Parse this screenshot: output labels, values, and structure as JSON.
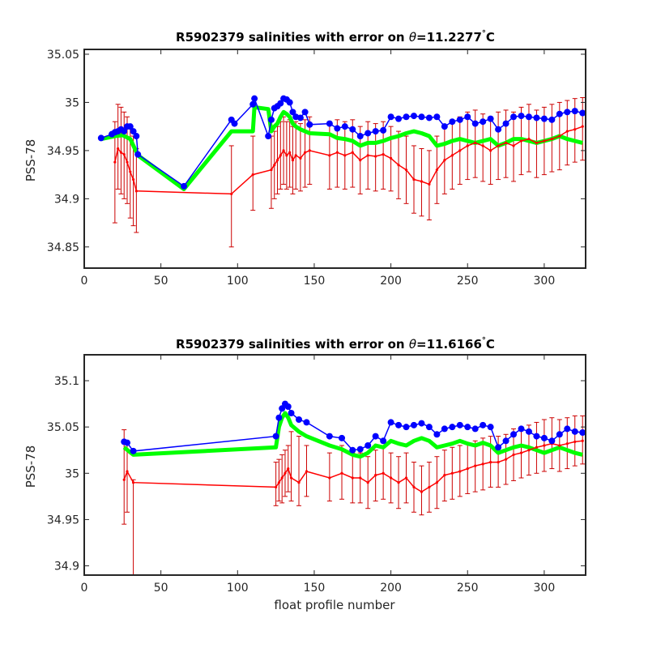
{
  "chart_data": [
    {
      "type": "line",
      "title": "R5902379 salinities with error on θ=11.2277°C",
      "title_parts": {
        "prefix": "R5902379 salinities with error on ",
        "symbol": "θ",
        "value": "=11.2277",
        "degree": "°",
        "unit": "C"
      },
      "xlabel": "",
      "ylabel": "PSS-78",
      "xlim": [
        0,
        327
      ],
      "ylim": [
        34.828,
        35.055
      ],
      "xticks": [
        0,
        50,
        100,
        150,
        200,
        250,
        300
      ],
      "xtick_labels": [
        "0",
        "50",
        "100",
        "150",
        "200",
        "250",
        "300"
      ],
      "yticks": [
        34.85,
        34.9,
        34.95,
        35,
        35.05
      ],
      "ytick_labels": [
        "34.85",
        "34.9",
        "34.95",
        "35",
        "35.05"
      ],
      "colors": {
        "float": "#0000ff",
        "mapped": "#00ff00",
        "calibrated": "#ff0000",
        "errorbar": "#cc0000"
      },
      "series": [
        {
          "x": [
            11,
            18,
            20,
            22,
            24,
            26,
            28,
            30,
            32,
            34,
            35,
            65,
            96,
            98,
            110,
            111,
            120,
            122,
            124,
            126,
            128,
            130,
            132,
            134,
            136,
            138,
            141,
            144,
            147,
            160,
            165,
            170,
            175,
            180,
            185,
            190,
            195,
            200,
            205,
            210,
            215,
            220,
            225,
            230,
            235,
            240,
            245,
            250,
            255,
            260,
            265,
            270,
            275,
            280,
            285,
            290,
            295,
            300,
            305,
            310,
            315,
            320,
            325
          ],
          "values": [
            34.963,
            34.967,
            34.969,
            34.97,
            34.972,
            34.97,
            34.975,
            34.975,
            34.97,
            34.965,
            34.946,
            34.913,
            34.982,
            34.978,
            34.998,
            35.004,
            34.965,
            34.982,
            34.994,
            34.996,
            34.999,
            35.004,
            35.003,
            35.0,
            34.99,
            34.985,
            34.984,
            34.99,
            34.977,
            34.978,
            34.973,
            34.975,
            34.972,
            34.965,
            34.968,
            34.97,
            34.971,
            34.985,
            34.983,
            34.985,
            34.986,
            34.985,
            34.984,
            34.985,
            34.975,
            34.98,
            34.982,
            34.985,
            34.978,
            34.98,
            34.983,
            34.972,
            34.978,
            34.985,
            34.986,
            34.985,
            34.984,
            34.983,
            34.982,
            34.988,
            34.99,
            34.991,
            34.989
          ]
        },
        {
          "x": [
            11,
            20,
            25,
            30,
            35,
            65,
            96,
            98,
            110,
            111,
            120,
            122,
            124,
            126,
            128,
            130,
            132,
            134,
            136,
            138,
            141,
            144,
            147,
            160,
            165,
            170,
            175,
            180,
            185,
            190,
            195,
            200,
            205,
            210,
            215,
            220,
            225,
            230,
            235,
            240,
            245,
            250,
            255,
            260,
            265,
            270,
            275,
            280,
            285,
            290,
            295,
            300,
            305,
            310,
            315,
            320,
            325
          ],
          "values": [
            34.962,
            34.965,
            34.966,
            34.962,
            34.945,
            34.91,
            34.97,
            34.97,
            34.97,
            34.995,
            34.993,
            34.97,
            34.975,
            34.978,
            34.985,
            34.99,
            34.988,
            34.985,
            34.978,
            34.975,
            34.972,
            34.97,
            34.968,
            34.967,
            34.963,
            34.962,
            34.96,
            34.955,
            34.958,
            34.958,
            34.96,
            34.963,
            34.965,
            34.968,
            34.97,
            34.968,
            34.965,
            34.955,
            34.957,
            34.96,
            34.962,
            34.96,
            34.958,
            34.96,
            34.962,
            34.955,
            34.958,
            34.962,
            34.962,
            34.96,
            34.958,
            34.96,
            34.962,
            34.965,
            34.962,
            34.96,
            34.958
          ]
        },
        {
          "x": [
            20,
            22,
            24,
            26,
            28,
            30,
            32,
            34,
            96,
            110,
            122,
            124,
            126,
            128,
            130,
            132,
            134,
            136,
            138,
            141,
            144,
            147,
            160,
            165,
            170,
            175,
            180,
            185,
            190,
            195,
            200,
            205,
            210,
            215,
            220,
            225,
            230,
            235,
            240,
            245,
            250,
            255,
            260,
            265,
            270,
            275,
            280,
            285,
            290,
            295,
            300,
            305,
            310,
            315,
            320,
            325
          ],
          "values": [
            34.938,
            34.952,
            34.948,
            34.946,
            34.938,
            34.928,
            34.92,
            34.908,
            34.905,
            34.925,
            34.93,
            34.935,
            34.94,
            34.945,
            34.95,
            34.945,
            34.948,
            34.94,
            34.945,
            34.942,
            34.948,
            34.95,
            34.945,
            34.948,
            34.945,
            34.948,
            34.94,
            34.945,
            34.944,
            34.946,
            34.942,
            34.935,
            34.93,
            34.92,
            34.918,
            34.915,
            34.93,
            34.94,
            34.945,
            34.95,
            34.955,
            34.958,
            34.955,
            34.95,
            34.955,
            34.958,
            34.955,
            34.96,
            34.962,
            34.958,
            34.96,
            34.962,
            34.965,
            34.97,
            34.972,
            34.975
          ],
          "error_low": [
            34.875,
            34.91,
            34.905,
            34.9,
            34.895,
            34.88,
            34.872,
            34.865,
            34.85,
            34.888,
            34.89,
            34.9,
            34.905,
            34.91,
            34.915,
            34.91,
            34.912,
            34.905,
            34.91,
            34.908,
            34.912,
            34.915,
            34.91,
            34.912,
            34.91,
            34.912,
            34.905,
            34.91,
            34.908,
            34.91,
            34.908,
            34.9,
            34.895,
            34.885,
            34.882,
            34.878,
            34.895,
            34.905,
            34.91,
            34.915,
            34.92,
            34.922,
            34.918,
            34.915,
            34.92,
            34.922,
            34.918,
            34.925,
            34.928,
            34.922,
            34.925,
            34.928,
            34.93,
            34.935,
            34.938,
            34.94
          ],
          "error_high": [
            34.98,
            34.998,
            34.995,
            34.99,
            34.985,
            34.975,
            34.965,
            34.952,
            34.955,
            34.965,
            34.965,
            34.97,
            34.975,
            34.98,
            34.985,
            34.98,
            34.982,
            34.975,
            34.98,
            34.978,
            34.982,
            34.985,
            34.98,
            34.982,
            34.98,
            34.982,
            34.975,
            34.98,
            34.978,
            34.98,
            34.975,
            34.97,
            34.965,
            34.955,
            34.952,
            34.95,
            34.965,
            34.975,
            34.98,
            34.985,
            34.99,
            34.992,
            34.988,
            34.985,
            34.99,
            34.992,
            34.99,
            34.995,
            34.998,
            34.992,
            34.995,
            34.998,
            35.0,
            35.002,
            35.004,
            35.005
          ]
        }
      ]
    },
    {
      "type": "line",
      "title": "R5902379 salinities with error on θ=11.6166°C",
      "title_parts": {
        "prefix": "R5902379 salinities with error on ",
        "symbol": "θ",
        "value": "=11.6166",
        "degree": "°",
        "unit": "C"
      },
      "xlabel": "float profile number",
      "ylabel": "PSS-78",
      "xlim": [
        0,
        327
      ],
      "ylim": [
        34.89,
        35.128
      ],
      "xticks": [
        0,
        50,
        100,
        150,
        200,
        250,
        300
      ],
      "xtick_labels": [
        "0",
        "50",
        "100",
        "150",
        "200",
        "250",
        "300"
      ],
      "yticks": [
        34.9,
        34.95,
        35,
        35.05,
        35.1
      ],
      "ytick_labels": [
        "34.9",
        "34.95",
        "35",
        "35.05",
        "35.1"
      ],
      "colors": {
        "float": "#0000ff",
        "mapped": "#00ff00",
        "calibrated": "#ff0000",
        "errorbar": "#cc0000"
      },
      "series": [
        {
          "x": [
            26,
            28,
            32,
            125,
            127,
            129,
            131,
            133,
            135,
            140,
            145,
            160,
            168,
            175,
            180,
            185,
            190,
            195,
            200,
            205,
            210,
            215,
            220,
            225,
            230,
            235,
            240,
            245,
            250,
            255,
            260,
            265,
            270,
            275,
            280,
            285,
            290,
            295,
            300,
            305,
            310,
            315,
            320,
            325
          ],
          "values": [
            35.034,
            35.033,
            35.024,
            35.04,
            35.06,
            35.07,
            35.075,
            35.072,
            35.065,
            35.058,
            35.055,
            35.04,
            35.038,
            35.025,
            35.026,
            35.03,
            35.04,
            35.035,
            35.055,
            35.052,
            35.05,
            35.052,
            35.054,
            35.05,
            35.042,
            35.048,
            35.05,
            35.052,
            35.05,
            35.048,
            35.052,
            35.05,
            35.028,
            35.035,
            35.042,
            35.048,
            35.045,
            35.04,
            35.038,
            35.035,
            35.042,
            35.048,
            35.045,
            35.044
          ]
        },
        {
          "x": [
            26,
            32,
            125,
            127,
            129,
            131,
            133,
            135,
            140,
            145,
            160,
            168,
            175,
            180,
            185,
            190,
            195,
            200,
            205,
            210,
            215,
            220,
            225,
            230,
            235,
            240,
            245,
            250,
            255,
            260,
            265,
            270,
            275,
            280,
            285,
            290,
            295,
            300,
            305,
            310,
            315,
            320,
            325
          ],
          "values": [
            35.028,
            35.02,
            35.028,
            35.05,
            35.06,
            35.065,
            35.06,
            35.052,
            35.045,
            35.04,
            35.03,
            35.026,
            35.02,
            35.018,
            35.022,
            35.03,
            35.028,
            35.035,
            35.032,
            35.03,
            35.035,
            35.038,
            35.035,
            35.028,
            35.03,
            35.032,
            35.035,
            35.032,
            35.03,
            35.033,
            35.03,
            35.022,
            35.025,
            35.028,
            35.03,
            35.028,
            35.025,
            35.022,
            35.025,
            35.028,
            35.025,
            35.022,
            35.02
          ]
        },
        {
          "x": [
            26,
            28,
            32,
            125,
            127,
            129,
            131,
            133,
            135,
            140,
            145,
            160,
            168,
            175,
            180,
            185,
            190,
            195,
            200,
            205,
            210,
            215,
            220,
            225,
            230,
            235,
            240,
            245,
            250,
            255,
            260,
            265,
            270,
            275,
            280,
            285,
            290,
            295,
            300,
            305,
            310,
            315,
            320,
            325
          ],
          "values": [
            34.993,
            35.002,
            34.99,
            34.985,
            34.99,
            34.995,
            35.0,
            35.005,
            34.995,
            34.99,
            35.002,
            34.995,
            35.0,
            34.995,
            34.995,
            34.99,
            34.998,
            35.0,
            34.995,
            34.99,
            34.995,
            34.985,
            34.98,
            34.985,
            34.99,
            34.998,
            35.0,
            35.002,
            35.005,
            35.008,
            35.01,
            35.012,
            35.012,
            35.015,
            35.02,
            35.022,
            35.025,
            35.028,
            35.03,
            35.032,
            35.03,
            35.032,
            35.034,
            35.035
          ],
          "error_low": [
            34.945,
            34.958,
            34.89,
            34.965,
            34.97,
            34.968,
            34.975,
            34.98,
            34.97,
            34.965,
            34.975,
            34.97,
            34.972,
            34.968,
            34.968,
            34.962,
            34.97,
            34.972,
            34.968,
            34.962,
            34.968,
            34.958,
            34.955,
            34.958,
            34.962,
            34.97,
            34.972,
            34.975,
            34.978,
            34.98,
            34.982,
            34.985,
            34.985,
            34.988,
            34.992,
            34.995,
            34.998,
            35.0,
            35.002,
            35.005,
            35.002,
            35.005,
            35.008,
            35.01
          ],
          "error_high": [
            35.047,
            35.034,
            34.993,
            35.012,
            35.015,
            35.02,
            35.025,
            35.03,
            35.045,
            35.04,
            35.03,
            35.022,
            35.03,
            35.022,
            35.022,
            35.018,
            35.025,
            35.028,
            35.022,
            35.018,
            35.022,
            35.012,
            35.008,
            35.012,
            35.018,
            35.025,
            35.028,
            35.03,
            35.032,
            35.035,
            35.038,
            35.04,
            35.04,
            35.042,
            35.048,
            35.05,
            35.052,
            35.055,
            35.058,
            35.06,
            35.058,
            35.06,
            35.062,
            35.062
          ]
        }
      ]
    }
  ]
}
